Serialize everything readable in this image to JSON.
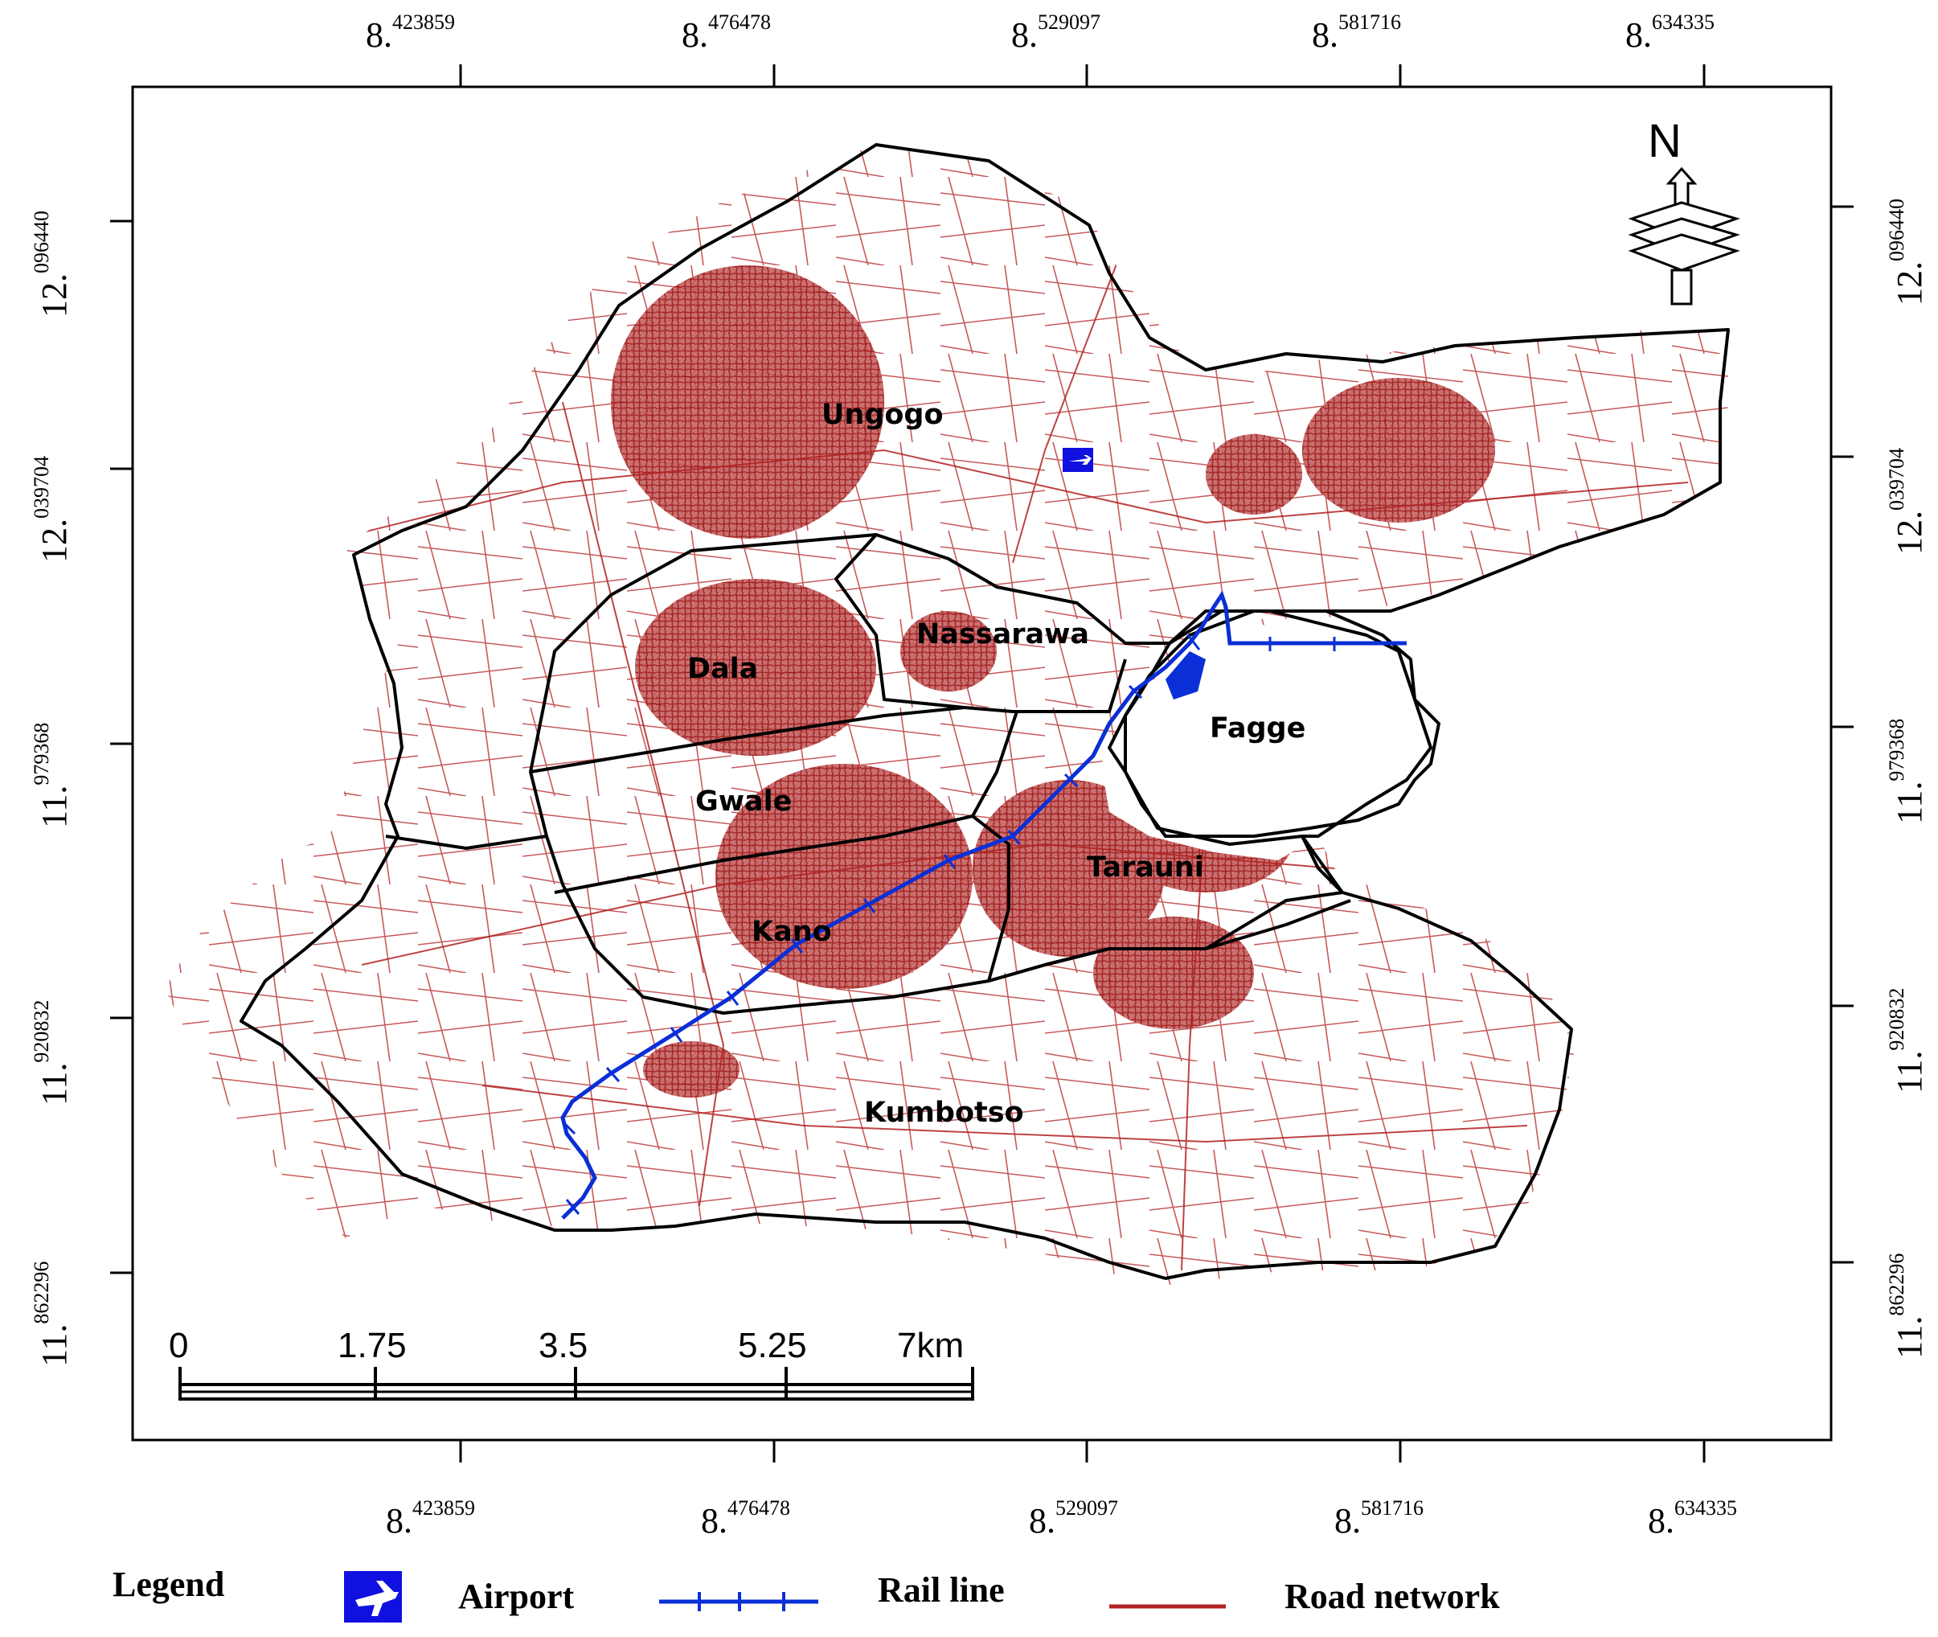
{
  "map": {
    "top_lon_labels": [
      {
        "main": "8.",
        "sup": "423859"
      },
      {
        "main": "8.",
        "sup": "476478"
      },
      {
        "main": "8.",
        "sup": "529097"
      },
      {
        "main": "8.",
        "sup": "581716"
      },
      {
        "main": "8.",
        "sup": "634335"
      }
    ],
    "bottom_lon_labels": [
      {
        "main": "8.",
        "sup": "423859"
      },
      {
        "main": "8.",
        "sup": "476478"
      },
      {
        "main": "8.",
        "sup": "529097"
      },
      {
        "main": "8.",
        "sup": "581716"
      },
      {
        "main": "8.",
        "sup": "634335"
      }
    ],
    "left_lat_labels": [
      {
        "main": "12.",
        "sup": "096440"
      },
      {
        "main": "12.",
        "sup": "039704"
      },
      {
        "main": "11.",
        "sup": "979368"
      },
      {
        "main": "11.",
        "sup": "920832"
      },
      {
        "main": "11.",
        "sup": "862296"
      }
    ],
    "right_lat_labels": [
      {
        "main": "12.",
        "sup": "096440"
      },
      {
        "main": "12.",
        "sup": "039704"
      },
      {
        "main": "11.",
        "sup": "979368"
      },
      {
        "main": "11.",
        "sup": "920832"
      },
      {
        "main": "11.",
        "sup": "862296"
      }
    ],
    "districts": [
      "Ungogo",
      "Nassarawa",
      "Dala",
      "Fagge",
      "Gwale",
      "Tarauni",
      "Kano",
      "Kumbotso"
    ],
    "north_label": "N",
    "scale_labels": [
      "0",
      "1.75",
      "3.5",
      "5.25",
      "7km"
    ],
    "colors": {
      "road": "#b22222",
      "boundary": "#000000",
      "rail": "#0a2fd6",
      "airport": "#1010e0"
    }
  },
  "legend": {
    "title": "Legend",
    "items": [
      {
        "label": "Airport",
        "icon": "airplane-icon"
      },
      {
        "label": "Rail line",
        "icon": "rail-line-icon"
      },
      {
        "label": "Road network",
        "icon": "road-line-icon"
      }
    ]
  }
}
